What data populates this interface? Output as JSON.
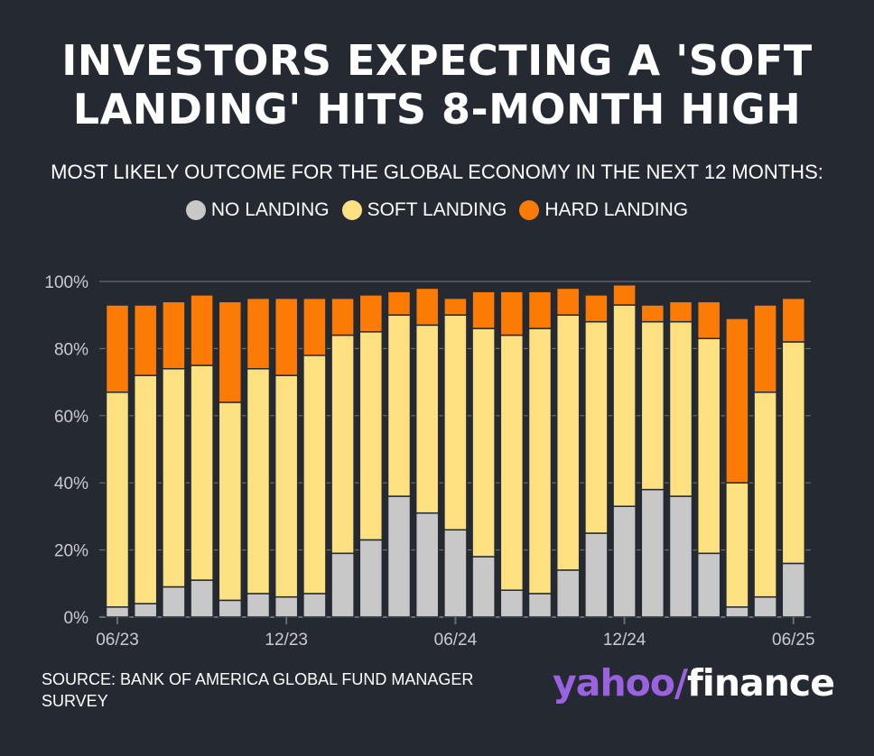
{
  "title_line1": "INVESTORS EXPECTING A 'SOFT",
  "title_line2": "LANDING' HITS 8-MONTH HIGH",
  "subtitle": "MOST LIKELY OUTCOME FOR THE GLOBAL ECONOMY IN THE NEXT 12 MONTHS:",
  "source_line1": "SOURCE: BANK OF AMERICA GLOBAL FUND MANAGER",
  "source_line2": "SURVEY",
  "logo": {
    "yahoo": "yahoo",
    "slash": "/",
    "finance": "finance"
  },
  "colors": {
    "no_landing": "#c8c8c8",
    "soft_landing": "#fde07f",
    "hard_landing": "#fc7b05",
    "grid": "#666c74",
    "background": "#252a32"
  },
  "chart_data": {
    "type": "bar",
    "stacked": true,
    "categories": [
      "06/23",
      "07/23",
      "08/23",
      "09/23",
      "10/23",
      "11/23",
      "12/23",
      "01/24",
      "02/24",
      "03/24",
      "04/24",
      "05/24",
      "06/24",
      "07/24",
      "08/24",
      "09/24",
      "10/24",
      "11/24",
      "12/24",
      "01/25",
      "02/25",
      "03/25",
      "04/25",
      "05/25",
      "06/25"
    ],
    "x_tick_labels": [
      "06/23",
      "12/23",
      "06/24",
      "12/24",
      "06/25"
    ],
    "x_tick_indices": [
      0,
      6,
      12,
      18,
      24
    ],
    "y_tick_labels": [
      "0%",
      "20%",
      "40%",
      "60%",
      "80%",
      "100%"
    ],
    "y_ticks": [
      0,
      20,
      40,
      60,
      80,
      100
    ],
    "ylim": [
      0,
      100
    ],
    "series": [
      {
        "name": "NO LANDING",
        "color": "#c8c8c8",
        "values": [
          3,
          4,
          9,
          11,
          5,
          7,
          6,
          7,
          19,
          23,
          36,
          31,
          26,
          18,
          8,
          7,
          14,
          25,
          33,
          38,
          36,
          19,
          3,
          6,
          16
        ]
      },
      {
        "name": "SOFT LANDING",
        "color": "#fde07f",
        "values": [
          64,
          68,
          65,
          64,
          59,
          67,
          66,
          71,
          65,
          62,
          54,
          56,
          64,
          68,
          76,
          79,
          76,
          63,
          60,
          50,
          52,
          64,
          37,
          61,
          66
        ]
      },
      {
        "name": "HARD LANDING",
        "color": "#fc7b05",
        "values": [
          26,
          21,
          20,
          21,
          30,
          21,
          23,
          17,
          11,
          11,
          7,
          11,
          5,
          11,
          13,
          11,
          8,
          8,
          6,
          5,
          6,
          11,
          49,
          26,
          13
        ]
      }
    ],
    "legend_position": "top-center",
    "grid": true
  }
}
